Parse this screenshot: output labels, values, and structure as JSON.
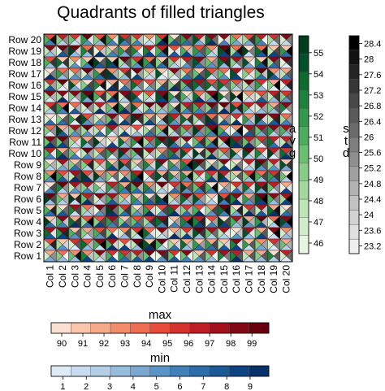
{
  "chart_data": {
    "type": "heatmap",
    "title": "Quadrants of filled triangles",
    "rows": [
      "Row 1",
      "Row 2",
      "Row 3",
      "Row 4",
      "Row 5",
      "Row 6",
      "Row 7",
      "Row 8",
      "Row 9",
      "Row 10",
      "Row 11",
      "Row 12",
      "Row 13",
      "Row 14",
      "Row 15",
      "Row 16",
      "Row 17",
      "Row 18",
      "Row 19",
      "Row 20"
    ],
    "columns": [
      "Col 1",
      "Col 2",
      "Col 3",
      "Col 4",
      "Col 5",
      "Col 6",
      "Col 7",
      "Col 8",
      "Col 9",
      "Col 10",
      "Col 11",
      "Col 12",
      "Col 13",
      "Col 14",
      "Col 15",
      "Col 16",
      "Col 17",
      "Col 18",
      "Col 19",
      "Col 20"
    ],
    "quadrants": {
      "top": "max",
      "bottom": "min",
      "left": "avg",
      "right": "std"
    },
    "colorbars": {
      "avg": {
        "label_chars": [
          "a",
          "v",
          "g"
        ],
        "ticks": [
          "46",
          "47",
          "48",
          "49",
          "50",
          "51",
          "52",
          "53",
          "54",
          "55"
        ],
        "range": [
          45.5,
          55.8
        ],
        "colors": [
          "#e6f5e1",
          "#d2edcb",
          "#bde5b6",
          "#a3d99e",
          "#88cd87",
          "#69bf72",
          "#4aae5e",
          "#32984c",
          "#1c823c",
          "#0b6c2e",
          "#00512a",
          "#003d1f"
        ]
      },
      "std": {
        "label_chars": [
          "s",
          "t",
          "d"
        ],
        "ticks": [
          "23.2",
          "23.6",
          "24",
          "24.4",
          "24.8",
          "25.2",
          "25.6",
          "26",
          "26.4",
          "26.8",
          "27.2",
          "27.6",
          "28",
          "28.4"
        ],
        "range": [
          23.0,
          28.6
        ],
        "colors": [
          "#f0f0f0",
          "#e1e1e1",
          "#d2d2d2",
          "#c2c2c2",
          "#b1b1b1",
          "#a0a0a0",
          "#8f8f8f",
          "#7e7e7e",
          "#6c6c6c",
          "#5a5a5a",
          "#484848",
          "#363636",
          "#242424",
          "#121212",
          "#000000"
        ]
      },
      "max": {
        "label": "max",
        "ticks": [
          "90",
          "91",
          "92",
          "93",
          "94",
          "95",
          "96",
          "97",
          "98",
          "99"
        ],
        "range": [
          89.5,
          99.8
        ],
        "colors": [
          "#fbe0d2",
          "#f9c5ad",
          "#f6a98a",
          "#f28d6b",
          "#ee6e51",
          "#e64b3c",
          "#d4322e",
          "#bc1e24",
          "#a1121c",
          "#830816",
          "#67000d"
        ]
      },
      "min": {
        "label": "min",
        "ticks": [
          "1",
          "2",
          "3",
          "4",
          "5",
          "6",
          "7",
          "8",
          "9"
        ],
        "range": [
          0.5,
          9.8
        ],
        "colors": [
          "#deebf7",
          "#c9dcef",
          "#b3cfe6",
          "#97bcdc",
          "#7aa8d1",
          "#5c93c6",
          "#4280ba",
          "#2c6daa",
          "#1a5898",
          "#0c4384",
          "#08306b"
        ]
      }
    }
  }
}
